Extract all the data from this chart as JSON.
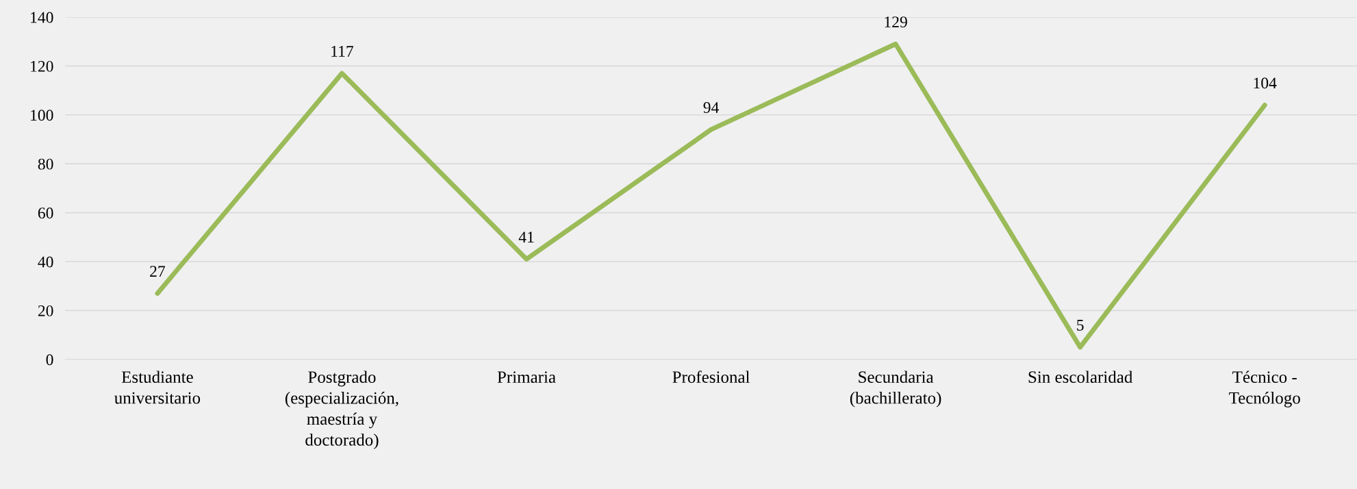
{
  "chart_data": {
    "type": "line",
    "categories": [
      "Estudiante universitario",
      "Postgrado (especialización, maestría y doctorado)",
      "Primaria",
      "Profesional",
      "Secundaria (bachillerato)",
      "Sin escolaridad",
      "Técnico - Tecnólogo"
    ],
    "series": [
      {
        "color": "#9bbb59",
        "values": [
          27,
          117,
          41,
          94,
          129,
          5,
          104
        ]
      }
    ],
    "ylim": [
      0,
      140
    ],
    "yticks": [
      0,
      20,
      40,
      60,
      80,
      100,
      120,
      140
    ],
    "grid": "y",
    "data_labels": true,
    "marker": "none",
    "line_style": "solid"
  }
}
